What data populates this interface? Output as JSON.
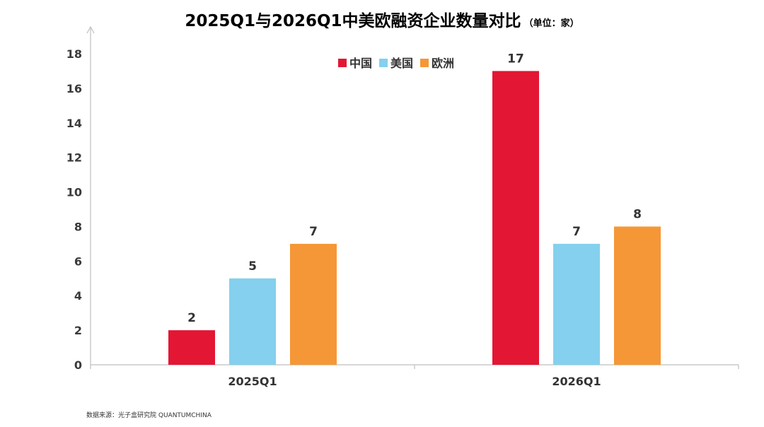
{
  "chart_data": {
    "type": "bar",
    "title": "2025Q1与2026Q1中美欧融资企业数量对比",
    "unit": "（单位：家）",
    "categories": [
      "2025Q1",
      "2026Q1"
    ],
    "series": [
      {
        "name": "中国",
        "color": "#e31634",
        "values": [
          2,
          17
        ]
      },
      {
        "name": "美国",
        "color": "#84d0ee",
        "values": [
          5,
          7
        ]
      },
      {
        "name": "欧洲",
        "color": "#f59736",
        "values": [
          7,
          8
        ]
      }
    ],
    "yticks": [
      0,
      2,
      4,
      6,
      8,
      10,
      12,
      14,
      16,
      18
    ],
    "ylim": [
      0,
      18
    ],
    "grid": false,
    "data_labels": true,
    "legend_position": "top-center",
    "source": "数据来源：光子盒研究院 QUANTUMCHINA"
  }
}
